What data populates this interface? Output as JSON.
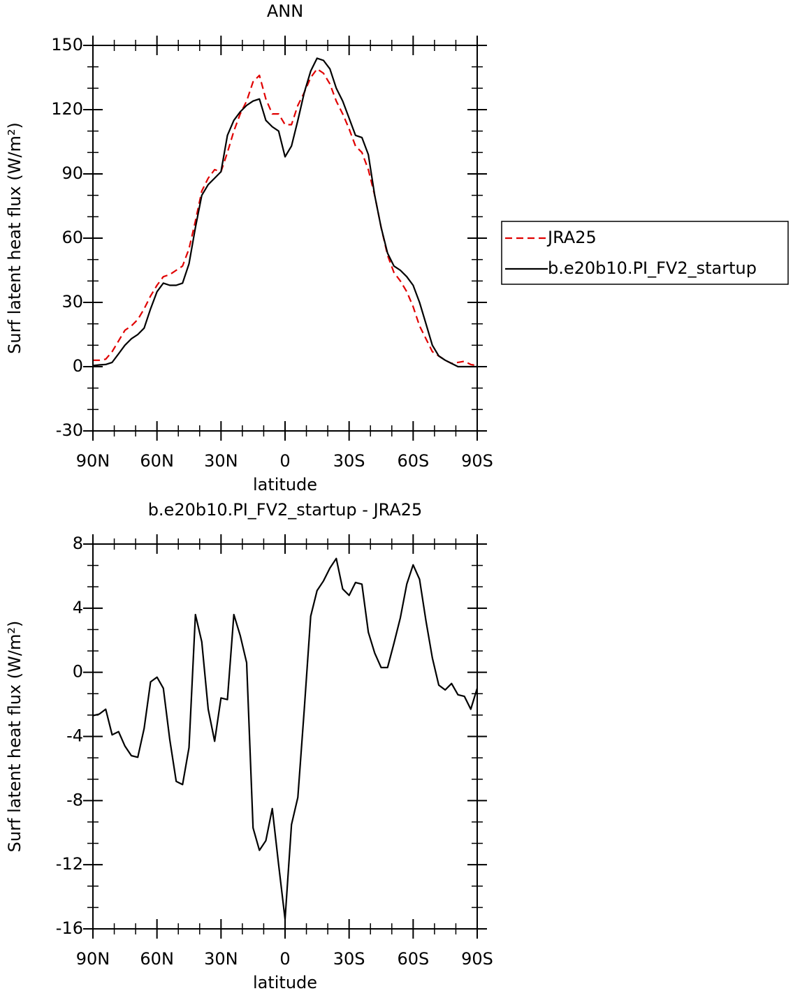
{
  "chart_data": [
    {
      "type": "line",
      "title": "ANN",
      "xlabel": "latitude",
      "ylabel": "Surf latent heat flux (W/m²)",
      "x": [
        90,
        87,
        84,
        81,
        78,
        75,
        72,
        69,
        66,
        63,
        60,
        57,
        54,
        51,
        48,
        45,
        42,
        39,
        36,
        33,
        30,
        27,
        24,
        21,
        18,
        15,
        12,
        9,
        6,
        3,
        0,
        -3,
        -6,
        -9,
        -12,
        -15,
        -18,
        -21,
        -24,
        -27,
        -30,
        -33,
        -36,
        -39,
        -42,
        -45,
        -48,
        -51,
        -54,
        -57,
        -60,
        -63,
        -66,
        -69,
        -72,
        -75,
        -78,
        -81,
        -84,
        -87,
        -90
      ],
      "series": [
        {
          "name": "JRA25",
          "color": "#e00000",
          "dash": true,
          "values": [
            3,
            3,
            3.5,
            7,
            12,
            17,
            19,
            22,
            27,
            33,
            38,
            42,
            43,
            45,
            47,
            55,
            68,
            82,
            88,
            92,
            91,
            100,
            110,
            118,
            124,
            133,
            136,
            125,
            118,
            118,
            113,
            113,
            122,
            128,
            135,
            139,
            137,
            132,
            124,
            118,
            111,
            103,
            100,
            92,
            80,
            65,
            52,
            44,
            40,
            35,
            28,
            19,
            13,
            7,
            5,
            3,
            1.5,
            2,
            2.5,
            1,
            0.5
          ]
        },
        {
          "name": "b.e20b10.PI_FV2_startup",
          "color": "#000000",
          "dash": false,
          "values": [
            0.5,
            0.8,
            1,
            2,
            6,
            10,
            13,
            15,
            18,
            27,
            35,
            39,
            38,
            38,
            39,
            48,
            65,
            80,
            85,
            88,
            91,
            108,
            115,
            119,
            122,
            124,
            125,
            115,
            112,
            110,
            98,
            103,
            115,
            128,
            138,
            144,
            143,
            139,
            130,
            124,
            116,
            108,
            107,
            99,
            80,
            65,
            53,
            47,
            45,
            42,
            38,
            30,
            20,
            10,
            5,
            3,
            1.5,
            0,
            0,
            0,
            0
          ]
        }
      ],
      "xlim": [
        90,
        -90
      ],
      "xticks": [
        {
          "value": 90,
          "label": "90N"
        },
        {
          "value": 60,
          "label": "60N"
        },
        {
          "value": 30,
          "label": "30N"
        },
        0,
        {
          "value": -30,
          "label": "30S"
        },
        {
          "value": -60,
          "label": "60S"
        },
        {
          "value": -90,
          "label": "90S"
        }
      ],
      "ylim": [
        -30,
        150
      ],
      "yticks": [
        -30,
        0,
        30,
        60,
        90,
        120,
        150
      ],
      "legend": "right"
    },
    {
      "type": "line",
      "title": "b.e20b10.PI_FV2_startup - JRA25",
      "xlabel": "latitude",
      "ylabel": "Surf latent heat flux (W/m²)",
      "x": [
        90,
        87,
        84,
        81,
        78,
        75,
        72,
        69,
        66,
        63,
        60,
        57,
        54,
        51,
        48,
        45,
        42,
        39,
        36,
        33,
        30,
        27,
        24,
        21,
        18,
        15,
        12,
        9,
        6,
        3,
        0,
        -3,
        -6,
        -9,
        -12,
        -15,
        -18,
        -21,
        -24,
        -27,
        -30,
        -33,
        -36,
        -39,
        -42,
        -45,
        -48,
        -51,
        -54,
        -57,
        -60,
        -63,
        -66,
        -69,
        -72,
        -75,
        -78,
        -81,
        -84,
        -87,
        -90
      ],
      "series": [
        {
          "name": "b.e20b10.PI_FV2_startup - JRA25",
          "color": "#000000",
          "dash": false,
          "values": [
            -2.7,
            -2.6,
            -2.3,
            -3.9,
            -3.7,
            -4.6,
            -5.2,
            -5.3,
            -3.5,
            -0.6,
            -0.3,
            -1.0,
            -4.2,
            -6.8,
            -7.0,
            -4.7,
            3.6,
            1.9,
            -2.3,
            -4.3,
            -1.6,
            -1.7,
            3.6,
            2.3,
            0.6,
            -9.7,
            -11.1,
            -10.5,
            -8.5,
            -12,
            -15.4,
            -9.5,
            -7.8,
            -2.3,
            3.5,
            5.1,
            5.7,
            6.5,
            7.1,
            5.2,
            4.8,
            5.6,
            5.5,
            2.5,
            1.2,
            0.3,
            0.3,
            1.8,
            3.4,
            5.5,
            6.7,
            5.8,
            3.2,
            0.9,
            -0.8,
            -1.1,
            -0.7,
            -1.4,
            -1.5,
            -2.3,
            -1.0
          ]
        }
      ],
      "xlim": [
        90,
        -90
      ],
      "xticks": [
        {
          "value": 90,
          "label": "90N"
        },
        {
          "value": 60,
          "label": "60N"
        },
        {
          "value": 30,
          "label": "30N"
        },
        0,
        {
          "value": -30,
          "label": "30S"
        },
        {
          "value": -60,
          "label": "60S"
        },
        {
          "value": -90,
          "label": "90S"
        }
      ],
      "ylim": [
        -16,
        8
      ],
      "yticks": [
        -16,
        -12,
        -8,
        -4,
        0,
        4,
        8
      ]
    }
  ]
}
